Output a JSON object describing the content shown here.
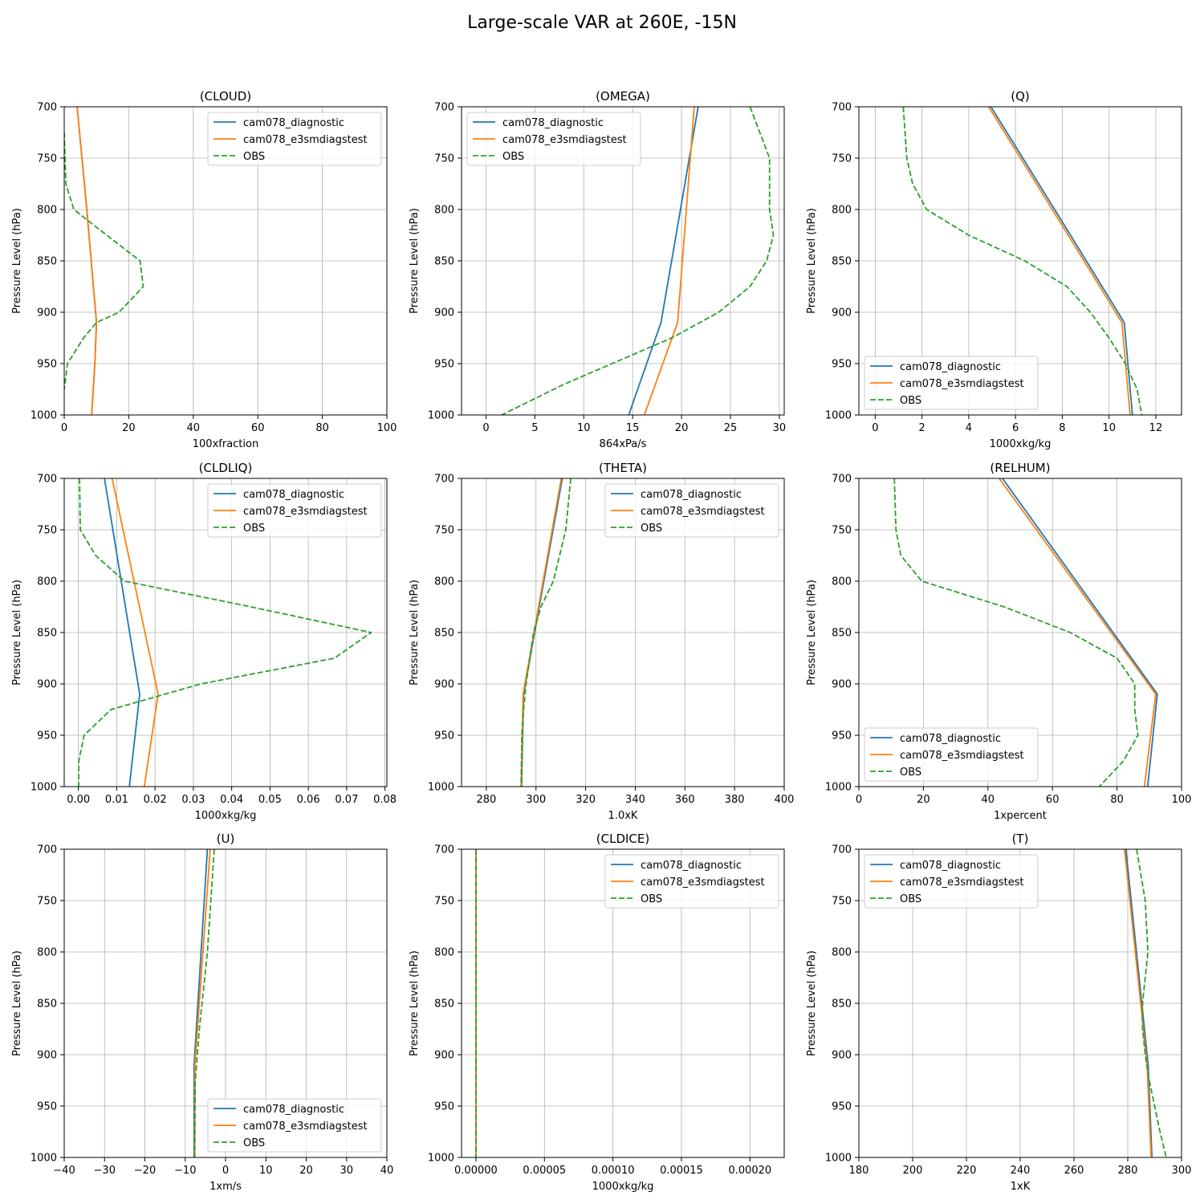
{
  "suptitle": "Large-scale VAR at 260E, -15N",
  "colors": {
    "cam078_diagnostic": "#1f77b4",
    "cam078_e3smdiagstest": "#ff7f0e",
    "OBS": "#2ca02c",
    "grid": "#b0b0b0"
  },
  "chart_data": [
    {
      "type": "line",
      "title": "(CLOUD)",
      "xlabel": "100xfraction",
      "ylabel": "Pressure Level (hPa)",
      "xlim": [
        0,
        100
      ],
      "ylim": [
        1000,
        700
      ],
      "grid": true,
      "legend_loc": "upper right",
      "xticks": [
        0,
        20,
        40,
        60,
        80,
        100
      ],
      "xtick_labels": [
        "0",
        "20",
        "40",
        "60",
        "80",
        "100"
      ],
      "yticks": [
        700,
        750,
        800,
        850,
        900,
        950,
        1000
      ],
      "series": [
        {
          "name": "cam078_diagnostic",
          "style": "solid",
          "points": [
            [
              4,
              700
            ],
            [
              7,
              800
            ],
            [
              10,
              910
            ],
            [
              9.5,
              950
            ],
            [
              8.5,
              1000
            ]
          ]
        },
        {
          "name": "cam078_e3smdiagstest",
          "style": "solid",
          "points": [
            [
              4,
              700
            ],
            [
              7,
              800
            ],
            [
              10,
              910
            ],
            [
              9.5,
              950
            ],
            [
              8.5,
              1000
            ]
          ]
        },
        {
          "name": "OBS",
          "style": "dashed",
          "points": [
            [
              0,
              725
            ],
            [
              0.5,
              775
            ],
            [
              3,
              800
            ],
            [
              7,
              810
            ],
            [
              23.5,
              850
            ],
            [
              24.5,
              875
            ],
            [
              17,
              900
            ],
            [
              10,
              910
            ],
            [
              6,
              925
            ],
            [
              1,
              950
            ],
            [
              0,
              975
            ]
          ]
        }
      ]
    },
    {
      "type": "line",
      "title": "(OMEGA)",
      "xlabel": "864xPa/s",
      "ylabel": "Pressure Level (hPa)",
      "xlim": [
        -2.5,
        30.5
      ],
      "ylim": [
        1000,
        700
      ],
      "grid": true,
      "legend_loc": "upper left",
      "xticks": [
        0,
        5,
        10,
        15,
        20,
        25,
        30
      ],
      "xtick_labels": [
        "0",
        "5",
        "10",
        "15",
        "20",
        "25",
        "30"
      ],
      "yticks": [
        700,
        750,
        800,
        850,
        900,
        950,
        1000
      ],
      "series": [
        {
          "name": "cam078_diagnostic",
          "style": "solid",
          "points": [
            [
              21.7,
              700
            ],
            [
              17.9,
              910
            ],
            [
              14.6,
              1000
            ]
          ]
        },
        {
          "name": "cam078_e3smdiagstest",
          "style": "solid",
          "points": [
            [
              21.3,
              700
            ],
            [
              19.6,
              910
            ],
            [
              16.2,
              1000
            ]
          ]
        },
        {
          "name": "OBS",
          "style": "dashed",
          "points": [
            [
              27,
              700
            ],
            [
              29,
              750
            ],
            [
              29,
              800
            ],
            [
              29.4,
              825
            ],
            [
              28.7,
              850
            ],
            [
              27,
              875
            ],
            [
              23.8,
              900
            ],
            [
              19,
              925
            ],
            [
              8,
              970
            ],
            [
              1.6,
              1000
            ]
          ]
        }
      ]
    },
    {
      "type": "line",
      "title": "(Q)",
      "xlabel": "1000xkg/kg",
      "ylabel": "Pressure Level (hPa)",
      "xlim": [
        -0.7,
        13.1
      ],
      "ylim": [
        1000,
        700
      ],
      "grid": true,
      "legend_loc": "lower left",
      "xticks": [
        0,
        2,
        4,
        6,
        8,
        10,
        12
      ],
      "xtick_labels": [
        "0",
        "2",
        "4",
        "6",
        "8",
        "10",
        "12"
      ],
      "yticks": [
        700,
        750,
        800,
        850,
        900,
        950,
        1000
      ],
      "series": [
        {
          "name": "cam078_diagnostic",
          "style": "solid",
          "points": [
            [
              4.95,
              700
            ],
            [
              8.0,
              812
            ],
            [
              10.65,
              910
            ],
            [
              11.0,
              1000
            ]
          ]
        },
        {
          "name": "cam078_e3smdiagstest",
          "style": "solid",
          "points": [
            [
              4.85,
              700
            ],
            [
              7.9,
              812
            ],
            [
              10.55,
              910
            ],
            [
              10.9,
              1000
            ]
          ]
        },
        {
          "name": "OBS",
          "style": "dashed",
          "points": [
            [
              1.2,
              700
            ],
            [
              1.35,
              750
            ],
            [
              1.6,
              775
            ],
            [
              2.2,
              800
            ],
            [
              4,
              825
            ],
            [
              6.4,
              850
            ],
            [
              8.2,
              875
            ],
            [
              9.2,
              900
            ],
            [
              10,
              925
            ],
            [
              10.7,
              950
            ],
            [
              11.2,
              975
            ],
            [
              11.4,
              1000
            ]
          ]
        }
      ]
    },
    {
      "type": "line",
      "title": "(CLDLIQ)",
      "xlabel": "1000xkg/kg",
      "ylabel": "Pressure Level (hPa)",
      "xlim": [
        -0.0037,
        0.0805
      ],
      "ylim": [
        1000,
        700
      ],
      "grid": true,
      "legend_loc": "upper right",
      "xticks": [
        0,
        0.01,
        0.02,
        0.03,
        0.04,
        0.05,
        0.06,
        0.07,
        0.08
      ],
      "xtick_labels": [
        "0.00",
        "0.01",
        "0.02",
        "0.03",
        "0.04",
        "0.05",
        "0.06",
        "0.07",
        "0.08"
      ],
      "yticks": [
        700,
        750,
        800,
        850,
        900,
        950,
        1000
      ],
      "series": [
        {
          "name": "cam078_diagnostic",
          "style": "solid",
          "points": [
            [
              0.0068,
              700
            ],
            [
              0.016,
              910
            ],
            [
              0.0133,
              1000
            ]
          ]
        },
        {
          "name": "cam078_e3smdiagstest",
          "style": "solid",
          "points": [
            [
              0.0088,
              700
            ],
            [
              0.0208,
              910
            ],
            [
              0.0172,
              1000
            ]
          ]
        },
        {
          "name": "OBS",
          "style": "dashed",
          "points": [
            [
              0.0003,
              700
            ],
            [
              0.0005,
              750
            ],
            [
              0.0045,
              775
            ],
            [
              0.012,
              800
            ],
            [
              0.045,
              825
            ],
            [
              0.0764,
              850
            ],
            [
              0.0668,
              875
            ],
            [
              0.032,
              900
            ],
            [
              0.0085,
              925
            ],
            [
              0.0015,
              950
            ],
            [
              0.0001,
              975
            ],
            [
              0.0001,
              1000
            ]
          ]
        }
      ]
    },
    {
      "type": "line",
      "title": "(THETA)",
      "xlabel": "1.0xK",
      "ylabel": "Pressure Level (hPa)",
      "xlim": [
        270,
        400
      ],
      "ylim": [
        1000,
        700
      ],
      "grid": true,
      "legend_loc": "upper right",
      "xticks": [
        280,
        300,
        320,
        340,
        360,
        380,
        400
      ],
      "xtick_labels": [
        "280",
        "300",
        "320",
        "340",
        "360",
        "380",
        "400"
      ],
      "yticks": [
        700,
        750,
        800,
        850,
        900,
        950,
        1000
      ],
      "series": [
        {
          "name": "cam078_diagnostic",
          "style": "solid",
          "points": [
            [
              310.6,
              700
            ],
            [
              295,
              910
            ],
            [
              294.2,
              1000
            ]
          ]
        },
        {
          "name": "cam078_e3smdiagstest",
          "style": "solid",
          "points": [
            [
              310.2,
              700
            ],
            [
              294.8,
              910
            ],
            [
              294,
              1000
            ]
          ]
        },
        {
          "name": "OBS",
          "style": "dashed",
          "points": [
            [
              314,
              700
            ],
            [
              312,
              750
            ],
            [
              309.5,
              775
            ],
            [
              307,
              800
            ],
            [
              302,
              825
            ],
            [
              299,
              850
            ],
            [
              297.5,
              875
            ],
            [
              296,
              900
            ],
            [
              295,
              925
            ],
            [
              294.3,
              950
            ],
            [
              294,
              1000
            ]
          ]
        }
      ]
    },
    {
      "type": "line",
      "title": "(RELHUM)",
      "xlabel": "1xpercent",
      "ylabel": "Pressure Level (hPa)",
      "xlim": [
        0,
        100
      ],
      "ylim": [
        1000,
        700
      ],
      "grid": true,
      "legend_loc": "lower left",
      "xticks": [
        0,
        20,
        40,
        60,
        80,
        100
      ],
      "xtick_labels": [
        "0",
        "20",
        "40",
        "60",
        "80",
        "100"
      ],
      "yticks": [
        700,
        750,
        800,
        850,
        900,
        950,
        1000
      ],
      "series": [
        {
          "name": "cam078_diagnostic",
          "style": "solid",
          "points": [
            [
              44.5,
              700
            ],
            [
              92.5,
              910
            ],
            [
              89.5,
              1000
            ]
          ]
        },
        {
          "name": "cam078_e3smdiagstest",
          "style": "solid",
          "points": [
            [
              43.5,
              700
            ],
            [
              92,
              910
            ],
            [
              88.5,
              1000
            ]
          ]
        },
        {
          "name": "OBS",
          "style": "dashed",
          "points": [
            [
              11,
              700
            ],
            [
              11.5,
              750
            ],
            [
              13,
              775
            ],
            [
              19.5,
              800
            ],
            [
              45,
              825
            ],
            [
              65.5,
              850
            ],
            [
              80,
              875
            ],
            [
              85.5,
              900
            ],
            [
              85.5,
              925
            ],
            [
              86.5,
              950
            ],
            [
              82,
              975
            ],
            [
              74.5,
              1000
            ]
          ]
        }
      ]
    },
    {
      "type": "line",
      "title": "(U)",
      "xlabel": "1xm/s",
      "ylabel": "Pressure Level (hPa)",
      "xlim": [
        -40,
        40
      ],
      "ylim": [
        1000,
        700
      ],
      "grid": true,
      "legend_loc": "lower right",
      "xticks": [
        -40,
        -30,
        -20,
        -10,
        0,
        10,
        20,
        30,
        40
      ],
      "xtick_labels": [
        "−40",
        "−30",
        "−20",
        "−10",
        "0",
        "10",
        "20",
        "30",
        "40"
      ],
      "yticks": [
        700,
        750,
        800,
        850,
        900,
        950,
        1000
      ],
      "series": [
        {
          "name": "cam078_diagnostic",
          "style": "solid",
          "points": [
            [
              -4.5,
              700
            ],
            [
              -7.8,
              910
            ],
            [
              -7.8,
              1000
            ]
          ]
        },
        {
          "name": "cam078_e3smdiagstest",
          "style": "solid",
          "points": [
            [
              -3.8,
              700
            ],
            [
              -7.6,
              910
            ],
            [
              -7.6,
              1000
            ]
          ]
        },
        {
          "name": "OBS",
          "style": "dashed",
          "points": [
            [
              -2.8,
              700
            ],
            [
              -4.5,
              800
            ],
            [
              -6.5,
              875
            ],
            [
              -7.5,
              925
            ],
            [
              -7.7,
              1000
            ]
          ]
        }
      ]
    },
    {
      "type": "line",
      "title": "(CLDICE)",
      "xlabel": "1000xkg/kg",
      "ylabel": "Pressure Level (hPa)",
      "xlim": [
        -1.05e-05,
        0.000225
      ],
      "ylim": [
        1000,
        700
      ],
      "grid": true,
      "legend_loc": "upper right",
      "xticks": [
        0,
        5e-05,
        0.0001,
        0.00015,
        0.0002
      ],
      "xtick_labels": [
        "0.00000",
        "0.00005",
        "0.00010",
        "0.00015",
        "0.00020"
      ],
      "yticks": [
        700,
        750,
        800,
        850,
        900,
        950,
        1000
      ],
      "series": [
        {
          "name": "cam078_diagnostic",
          "style": "solid",
          "points": [
            [
              0,
              700
            ],
            [
              0,
              1000
            ]
          ]
        },
        {
          "name": "cam078_e3smdiagstest",
          "style": "solid",
          "points": [
            [
              0,
              700
            ],
            [
              0,
              1000
            ]
          ]
        },
        {
          "name": "OBS",
          "style": "dashed",
          "points": [
            [
              0,
              700
            ],
            [
              0,
              1000
            ]
          ]
        }
      ]
    },
    {
      "type": "line",
      "title": "(T)",
      "xlabel": "1xK",
      "ylabel": "Pressure Level (hPa)",
      "xlim": [
        180,
        300
      ],
      "ylim": [
        1000,
        700
      ],
      "grid": true,
      "legend_loc": "upper left",
      "xticks": [
        180,
        200,
        220,
        240,
        260,
        280,
        300
      ],
      "xtick_labels": [
        "180",
        "200",
        "220",
        "240",
        "260",
        "280",
        "300"
      ],
      "yticks": [
        700,
        750,
        800,
        850,
        900,
        950,
        1000
      ],
      "series": [
        {
          "name": "cam078_diagnostic",
          "style": "solid",
          "points": [
            [
              279.3,
              700
            ],
            [
              287.6,
              910
            ],
            [
              289,
              1000
            ]
          ]
        },
        {
          "name": "cam078_e3smdiagstest",
          "style": "solid",
          "points": [
            [
              278.8,
              700
            ],
            [
              287.2,
              910
            ],
            [
              288.7,
              1000
            ]
          ]
        },
        {
          "name": "OBS",
          "style": "dashed",
          "points": [
            [
              283.3,
              700
            ],
            [
              286.5,
              750
            ],
            [
              287.5,
              800
            ],
            [
              285.5,
              850
            ],
            [
              285.5,
              875
            ],
            [
              286.5,
              900
            ],
            [
              288,
              925
            ],
            [
              290,
              950
            ],
            [
              292,
              975
            ],
            [
              294.3,
              1000
            ]
          ]
        }
      ]
    }
  ]
}
